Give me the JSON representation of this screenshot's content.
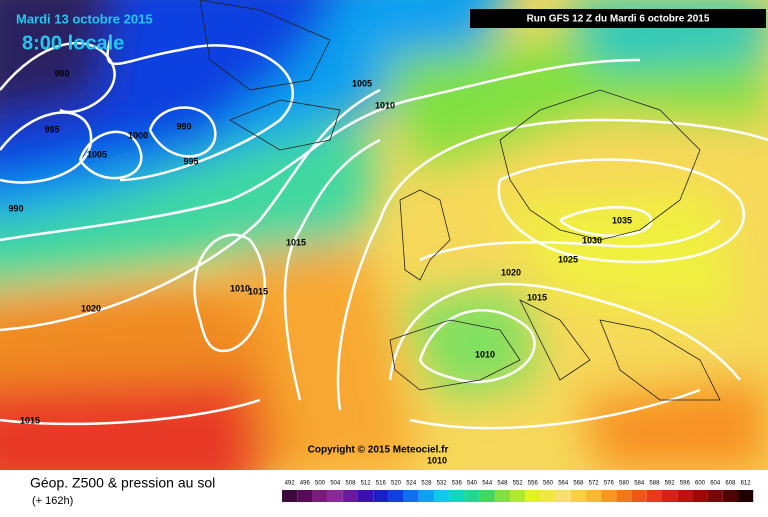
{
  "header": {
    "date": "Mardi 13 octobre 2015",
    "time": "8:00 locale",
    "run": "Run GFS 12 Z du Mardi 6 octobre 2015"
  },
  "isobar_labels": [
    "990",
    "995",
    "1005",
    "1000",
    "990",
    "995",
    "990",
    "1005",
    "1010",
    "1015",
    "1020",
    "1010",
    "1015",
    "1035",
    "1030",
    "1025",
    "1020",
    "1015",
    "1010",
    "1015",
    "1010"
  ],
  "copyright": "Copyright © 2015 Meteociel.fr",
  "footer": {
    "title": "Géop. Z500 & pression au sol",
    "lead": "(+ 162h)"
  },
  "legend": {
    "labels": [
      "492",
      "496",
      "500",
      "504",
      "508",
      "512",
      "516",
      "520",
      "524",
      "528",
      "532",
      "536",
      "540",
      "544",
      "548",
      "552",
      "556",
      "560",
      "564",
      "568",
      "572",
      "576",
      "580",
      "584",
      "588",
      "592",
      "596",
      "600",
      "604",
      "608",
      "612"
    ],
    "colors": [
      "#3c0a3c",
      "#5a0a5a",
      "#7a1a7a",
      "#8a2a9a",
      "#6a1aa0",
      "#3a10b0",
      "#1a20c8",
      "#1040e0",
      "#1070f0",
      "#10a0f0",
      "#10c8e8",
      "#10d8c0",
      "#20d890",
      "#40d860",
      "#80e040",
      "#b0e830",
      "#e0f020",
      "#f0e840",
      "#f8e070",
      "#f8d040",
      "#f8b830",
      "#f89820",
      "#f07818",
      "#f05818",
      "#e83818",
      "#d82018",
      "#c01010",
      "#a00808",
      "#780808",
      "#500404",
      "#200000"
    ]
  }
}
